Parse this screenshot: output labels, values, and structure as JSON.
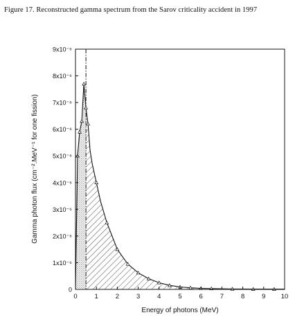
{
  "figure": {
    "caption": "Figure 17.  Reconstructed gamma spectrum from the Sarov criticality accident in 1997"
  },
  "chart_data": {
    "type": "area",
    "title": "",
    "xlabel": "Energy of photons (MeV)",
    "ylabel": "Gamma photon flux (cm⁻².MeV⁻¹ for one fission)",
    "xlim": [
      0,
      10
    ],
    "ylim": [
      0,
      9e-06
    ],
    "x_ticks": [
      "0",
      "1",
      "2",
      "3",
      "4",
      "5",
      "6",
      "7",
      "8",
      "9",
      "10"
    ],
    "y_ticks": [
      "0",
      "1x10⁻⁶",
      "2x10⁻⁶",
      "3x10⁻⁶",
      "4x10⁻⁶",
      "5x10⁻⁶",
      "6x10⁻⁶",
      "7x10⁻⁶",
      "8x10⁻⁶",
      "9x10⁻⁶"
    ],
    "grid": false,
    "series": [
      {
        "x": [
          0.0,
          0.1,
          0.2,
          0.3,
          0.4,
          0.5,
          0.6,
          0.7,
          0.8,
          1.0,
          1.2,
          1.5,
          2.0,
          2.5,
          3.0,
          3.5,
          4.0,
          4.5,
          5.0,
          5.5,
          6.0,
          7.0,
          7.5,
          8.5,
          9.5,
          10.0
        ],
        "y": [
          0.0,
          5e-06,
          5.9e-06,
          6.3e-06,
          7.7e-06,
          6.8e-06,
          6.2e-06,
          5.2e-06,
          4.7e-06,
          4e-06,
          3.3e-06,
          2.5e-06,
          1.5e-06,
          9.5e-07,
          6.2e-07,
          4e-07,
          2.5e-07,
          1.5e-07,
          9e-08,
          6e-08,
          4e-08,
          2e-08,
          1.5e-08,
          1e-08,
          1e-08,
          1e-08
        ]
      }
    ],
    "markers_x": [
      0.1,
      0.2,
      0.3,
      0.4,
      0.5,
      0.6,
      1.0,
      1.5,
      2.0,
      2.5,
      3.0,
      3.5,
      4.0,
      4.5,
      5.0,
      5.5,
      6.0,
      6.5,
      7.5,
      8.5,
      9.5
    ],
    "vertical_dashdot_x": 0.5
  }
}
